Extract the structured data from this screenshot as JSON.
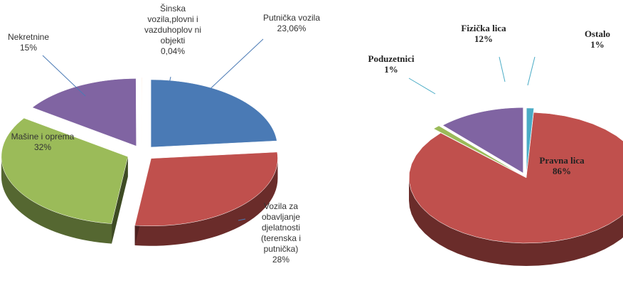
{
  "chart_data": [
    {
      "type": "pie3d",
      "categories": [
        "Putnička vozila",
        "Vozila za obavljanje djelatnosti (terenska i putnička)",
        "Mašine i oprema",
        "Nekretnine",
        "Šinska vozila,plovni i vazduhoplov ni objekti"
      ],
      "values": [
        23.06,
        28,
        32,
        15,
        0.04
      ],
      "value_labels": [
        "23,06%",
        "28%",
        "32%",
        "15%",
        "0,04%"
      ],
      "colors": [
        "#4a7ab5",
        "#c0504d",
        "#9bbb59",
        "#8064a2",
        "#f79646"
      ]
    },
    {
      "type": "pie3d",
      "categories": [
        "Ostalo",
        "Pravna lica",
        "Poduzetnici",
        "Fizička lica"
      ],
      "values": [
        1,
        86,
        1,
        12
      ],
      "value_labels": [
        "1%",
        "86%",
        "1%",
        "12%"
      ],
      "colors": [
        "#4bacc6",
        "#c0504d",
        "#9bbb59",
        "#8064a2"
      ]
    }
  ]
}
